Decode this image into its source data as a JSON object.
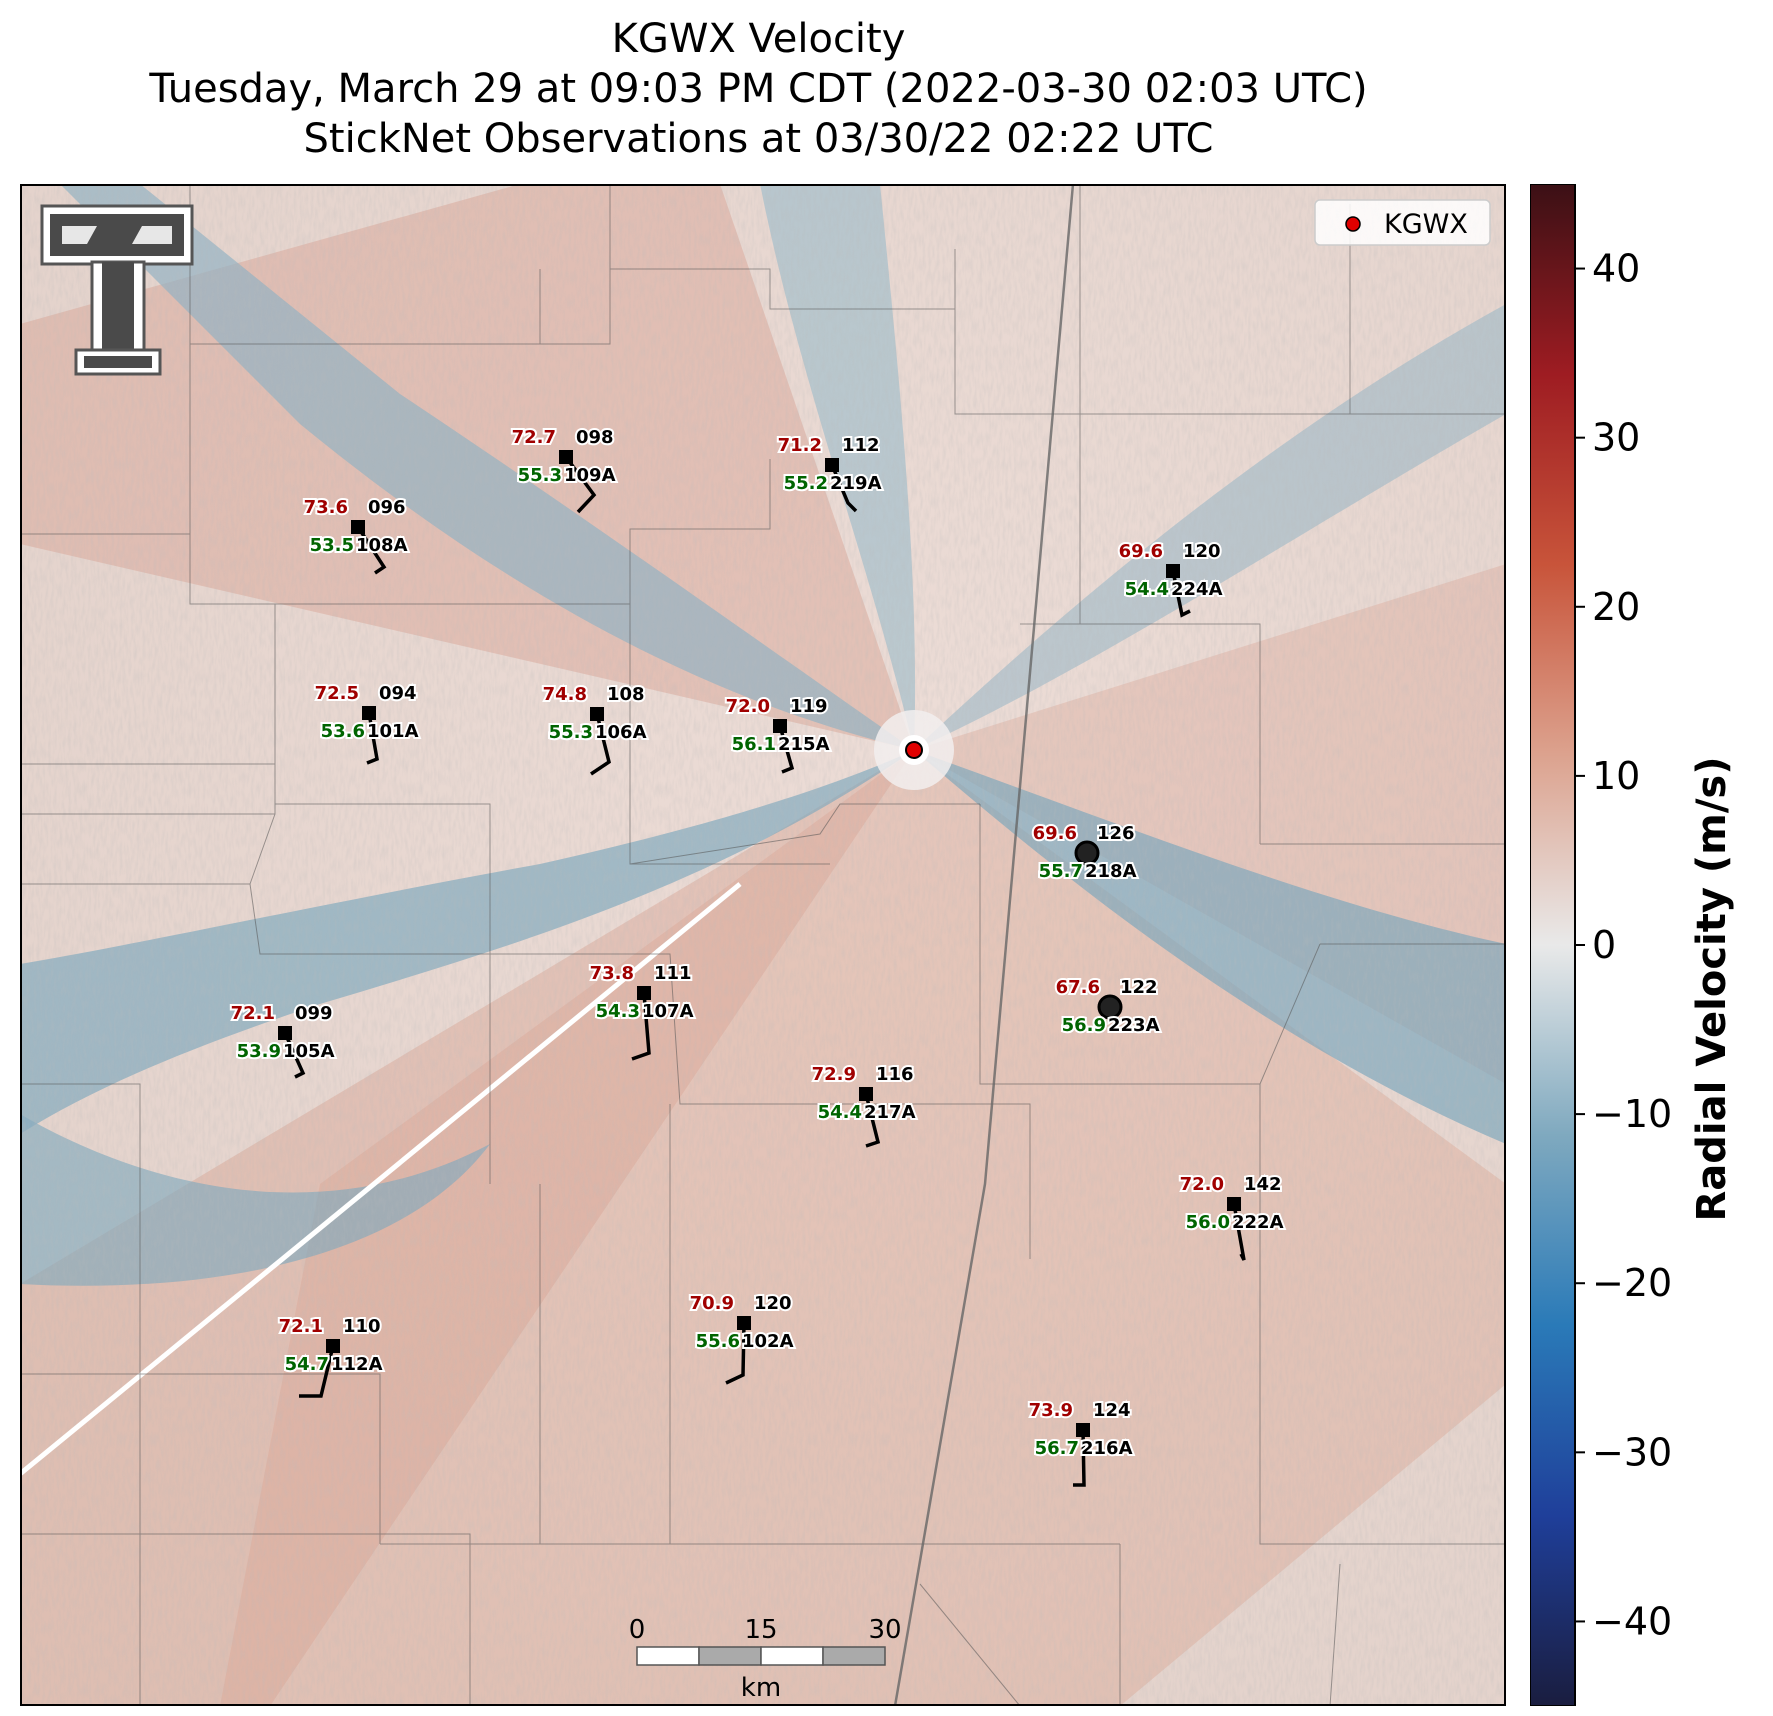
{
  "title": {
    "line1": "KGWX Velocity",
    "line2": "Tuesday, March 29 at 09:03 PM CDT (2022-03-30 02:03 UTC)",
    "line3": "StickNet Observations at 03/30/22 02:22 UTC"
  },
  "legend": {
    "label": "KGWX",
    "marker_color": "#e00000"
  },
  "colorbar": {
    "label": "Radial Velocity (m/s)",
    "ticks": [
      "40",
      "30",
      "20",
      "10",
      "0",
      "−10",
      "−20",
      "−30",
      "−40"
    ],
    "range": [
      -45,
      45
    ],
    "colors": [
      "#1a1d3f",
      "#1f3f9a",
      "#2a7ab8",
      "#7fa9bf",
      "#e9e9e9",
      "#dca28e",
      "#c8543a",
      "#9e1c22",
      "#3b1015"
    ]
  },
  "scale_bar": {
    "ticks": [
      "0",
      "15",
      "30"
    ],
    "unit": "km"
  },
  "logo": {
    "name": "texas-tech-double-t-logo"
  },
  "stations": [
    {
      "temp": "73.6",
      "dew": "53.5",
      "dir": "096",
      "id": "108A",
      "marker": "square"
    },
    {
      "temp": "72.7",
      "dew": "55.3",
      "dir": "098",
      "id": "109A",
      "marker": "square"
    },
    {
      "temp": "71.2",
      "dew": "55.2",
      "dir": "112",
      "id": "219A",
      "marker": "square"
    },
    {
      "temp": "69.6",
      "dew": "54.4",
      "dir": "120",
      "id": "224A",
      "marker": "square"
    },
    {
      "temp": "72.5",
      "dew": "53.6",
      "dir": "094",
      "id": "101A",
      "marker": "square"
    },
    {
      "temp": "74.8",
      "dew": "55.3",
      "dir": "108",
      "id": "106A",
      "marker": "square"
    },
    {
      "temp": "72.0",
      "dew": "56.1",
      "dir": "119",
      "id": "215A",
      "marker": "square"
    },
    {
      "temp": "69.6",
      "dew": "55.7",
      "dir": "126",
      "id": "218A",
      "marker": "circle"
    },
    {
      "temp": "73.8",
      "dew": "54.3",
      "dir": "111",
      "id": "107A",
      "marker": "square"
    },
    {
      "temp": "67.6",
      "dew": "56.9",
      "dir": "122",
      "id": "223A",
      "marker": "circle"
    },
    {
      "temp": "72.1",
      "dew": "53.9",
      "dir": "099",
      "id": "105A",
      "marker": "square"
    },
    {
      "temp": "72.9",
      "dew": "54.4",
      "dir": "116",
      "id": "217A",
      "marker": "square"
    },
    {
      "temp": "72.0",
      "dew": "56.0",
      "dir": "142",
      "id": "222A",
      "marker": "square"
    },
    {
      "temp": "70.9",
      "dew": "55.6",
      "dir": "120",
      "id": "102A",
      "marker": "square"
    },
    {
      "temp": "72.1",
      "dew": "54.7",
      "dir": "110",
      "id": "112A",
      "marker": "square"
    },
    {
      "temp": "73.9",
      "dew": "56.7",
      "dir": "124",
      "id": "216A",
      "marker": "square"
    }
  ]
}
